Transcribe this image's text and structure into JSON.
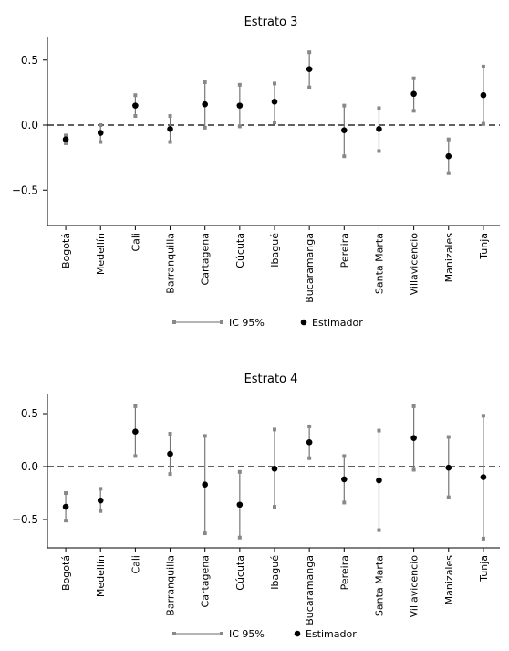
{
  "chart_data": [
    {
      "type": "scatter",
      "title": "Estrato 3",
      "categories": [
        "Bogotá",
        "Medellín",
        "Cali",
        "Barranquilla",
        "Cartagena",
        "Cúcuta",
        "Ibagué",
        "Bucaramanga",
        "Pereira",
        "Santa Marta",
        "Villavicencio",
        "Manizales",
        "Tunja"
      ],
      "series": [
        {
          "name": "Estimador",
          "values": [
            -0.11,
            -0.06,
            0.15,
            -0.03,
            0.16,
            0.15,
            0.18,
            0.43,
            -0.04,
            -0.03,
            0.24,
            -0.24,
            0.23
          ]
        },
        {
          "name": "IC 95%",
          "lower": [
            -0.14,
            -0.13,
            0.07,
            -0.13,
            -0.02,
            -0.01,
            0.02,
            0.29,
            -0.24,
            -0.2,
            0.11,
            -0.37,
            0.01
          ],
          "upper": [
            -0.08,
            0.0,
            0.23,
            0.07,
            0.33,
            0.31,
            0.32,
            0.56,
            0.15,
            0.13,
            0.36,
            -0.11,
            0.45
          ]
        }
      ],
      "yticks": [
        "0.5",
        "0.0",
        "−0.5"
      ],
      "ylim": [
        -0.77,
        0.67
      ],
      "reference_line": 0,
      "legend": [
        "IC 95%",
        "Estimador"
      ],
      "legend_position": "bottom"
    },
    {
      "type": "scatter",
      "title": "Estrato 4",
      "categories": [
        "Bogotá",
        "Medellín",
        "Cali",
        "Barranquilla",
        "Cartagena",
        "Cúcuta",
        "Ibagué",
        "Bucaramanga",
        "Pereira",
        "Santa Marta",
        "Villavicencio",
        "Manizales",
        "Tunja"
      ],
      "series": [
        {
          "name": "Estimador",
          "values": [
            -0.38,
            -0.32,
            0.33,
            0.12,
            -0.17,
            -0.36,
            -0.02,
            0.23,
            -0.12,
            -0.13,
            0.27,
            -0.01,
            -0.1
          ]
        },
        {
          "name": "IC 95%",
          "lower": [
            -0.51,
            -0.42,
            0.1,
            -0.07,
            -0.63,
            -0.67,
            -0.38,
            0.08,
            -0.34,
            -0.6,
            -0.03,
            -0.29,
            -0.68
          ],
          "upper": [
            -0.25,
            -0.21,
            0.57,
            0.31,
            0.29,
            -0.05,
            0.35,
            0.38,
            0.1,
            0.34,
            0.57,
            0.28,
            0.48
          ]
        }
      ],
      "yticks": [
        "0.5",
        "0.0",
        "−0.5"
      ],
      "ylim": [
        -0.77,
        0.67
      ],
      "reference_line": 0,
      "legend": [
        "IC 95%",
        "Estimador"
      ],
      "legend_position": "bottom"
    }
  ]
}
